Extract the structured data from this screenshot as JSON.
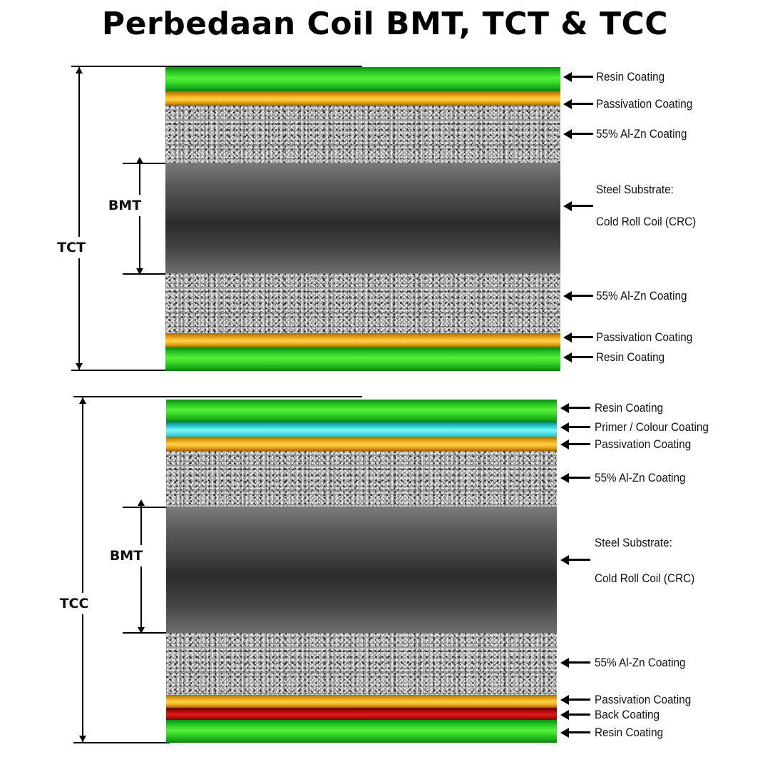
{
  "title": "Perbedaan Coil BMT, TCT & TCC",
  "colors": {
    "resin": "#3ede2c",
    "passivation": "#f2b01c",
    "primer": "#40e6e6",
    "back": "#c41010",
    "steel": "#3e3e3e",
    "alzn": "#9a9a9a"
  },
  "tct_diagram": {
    "outer_label": "TCT",
    "inner_label": "BMT",
    "layers": [
      {
        "type": "resin",
        "label": "Resin Coating"
      },
      {
        "type": "passivation",
        "label": "Passivation Coating"
      },
      {
        "type": "alzn",
        "label": "55% Al-Zn Coating"
      },
      {
        "type": "steel",
        "label_line1": "Steel Substrate:",
        "label_line2": "Cold Roll Coil (CRC)"
      },
      {
        "type": "alzn",
        "label": "55% Al-Zn Coating"
      },
      {
        "type": "passivation",
        "label": "Passivation Coating"
      },
      {
        "type": "resin",
        "label": "Resin Coating"
      }
    ]
  },
  "tcc_diagram": {
    "outer_label": "TCC",
    "inner_label": "BMT",
    "layers": [
      {
        "type": "resin",
        "label": "Resin Coating"
      },
      {
        "type": "primer",
        "label": "Primer / Colour Coating"
      },
      {
        "type": "passivation",
        "label": "Passivation Coating"
      },
      {
        "type": "alzn",
        "label": "55% Al-Zn Coating"
      },
      {
        "type": "steel",
        "label_line1": "Steel Substrate:",
        "label_line2": "Cold Roll Coil (CRC)"
      },
      {
        "type": "alzn",
        "label": "55% Al-Zn Coating"
      },
      {
        "type": "passivation",
        "label": "Passivation Coating"
      },
      {
        "type": "back",
        "label": "Back Coating"
      },
      {
        "type": "resin",
        "label": "Resin Coating"
      }
    ]
  }
}
